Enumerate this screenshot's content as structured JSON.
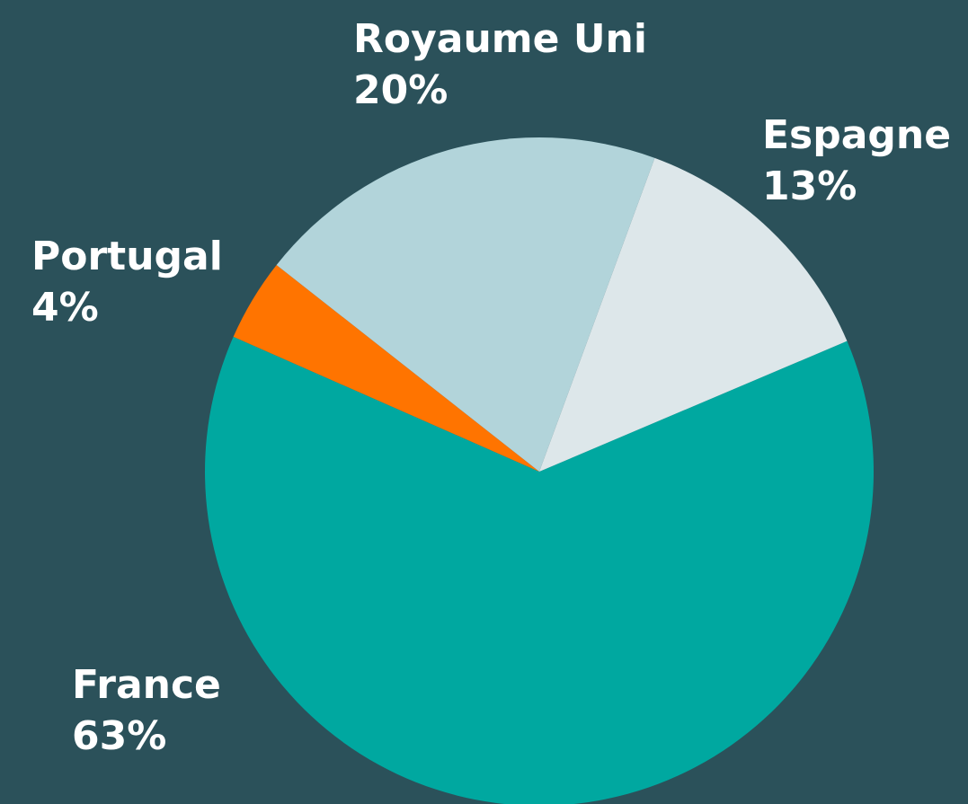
{
  "chart_data": {
    "type": "pie",
    "categories": [
      "France",
      "Portugal",
      "Royaume Uni",
      "Espagne"
    ],
    "values": [
      63,
      4,
      20,
      13
    ],
    "value_labels": [
      "63%",
      "4%",
      "20%",
      "13%"
    ],
    "colors": [
      "#00a8a0",
      "#ff7400",
      "#b2d4da",
      "#dde7ea"
    ]
  }
}
